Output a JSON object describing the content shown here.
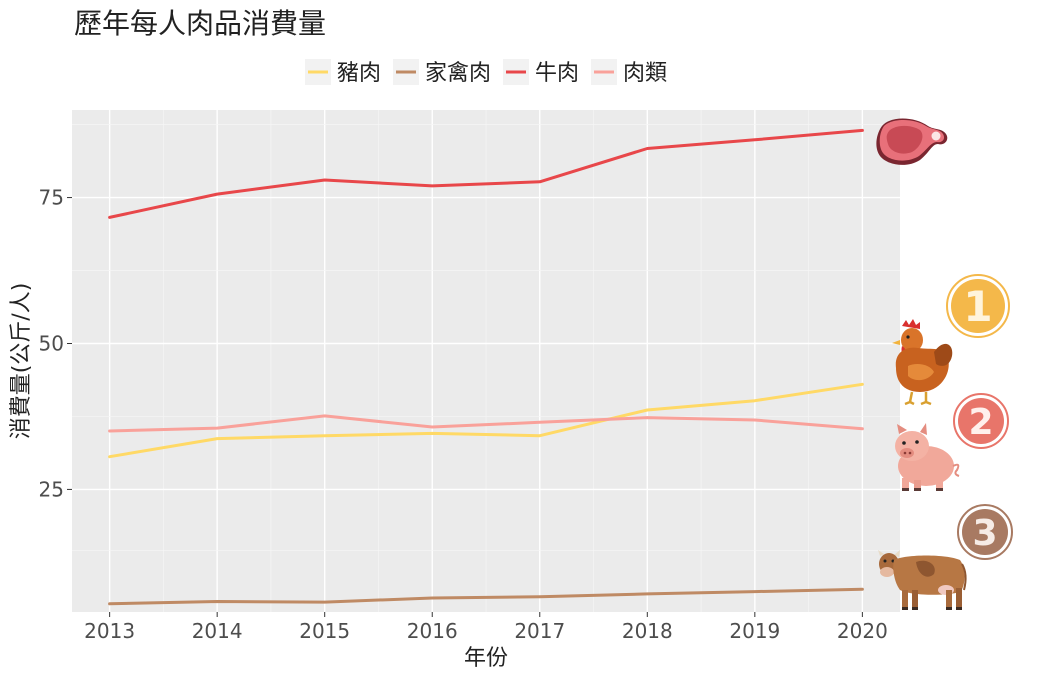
{
  "chart_data": {
    "type": "line",
    "title": "歷年每人肉品消費量",
    "xlabel": "年份",
    "ylabel": "消費量(公斤/人)",
    "x": [
      2013,
      2014,
      2015,
      2016,
      2017,
      2018,
      2019,
      2020
    ],
    "xlim": [
      2012.65,
      2020.35
    ],
    "ylim": [
      4,
      90
    ],
    "yticks": [
      25,
      50,
      75
    ],
    "grid": true,
    "legend_position": "top",
    "series": [
      {
        "name": "豬肉",
        "color": "#FFD966",
        "values": [
          30.6,
          33.7,
          34.2,
          34.6,
          34.2,
          38.6,
          40.2,
          43.0
        ]
      },
      {
        "name": "家禽肉",
        "color": "#BF8A64",
        "values": [
          5.4,
          5.8,
          5.7,
          6.4,
          6.6,
          7.1,
          7.5,
          7.9
        ]
      },
      {
        "name": "牛肉",
        "color": "#E8474A",
        "values": [
          71.6,
          75.6,
          78.0,
          77.0,
          77.7,
          83.4,
          84.9,
          86.5
        ]
      },
      {
        "name": "肉類",
        "color": "#F9A19A",
        "values": [
          35.0,
          35.5,
          37.6,
          35.7,
          36.5,
          37.3,
          36.9,
          35.4
        ]
      }
    ],
    "rank_badges": [
      {
        "label": "1",
        "color": "#F4B84A",
        "icon": "chicken-icon"
      },
      {
        "label": "2",
        "color": "#E8756A",
        "icon": "pig-icon"
      },
      {
        "label": "3",
        "color": "#A87A62",
        "icon": "cow-icon"
      }
    ],
    "top_icon": "steak-icon"
  }
}
